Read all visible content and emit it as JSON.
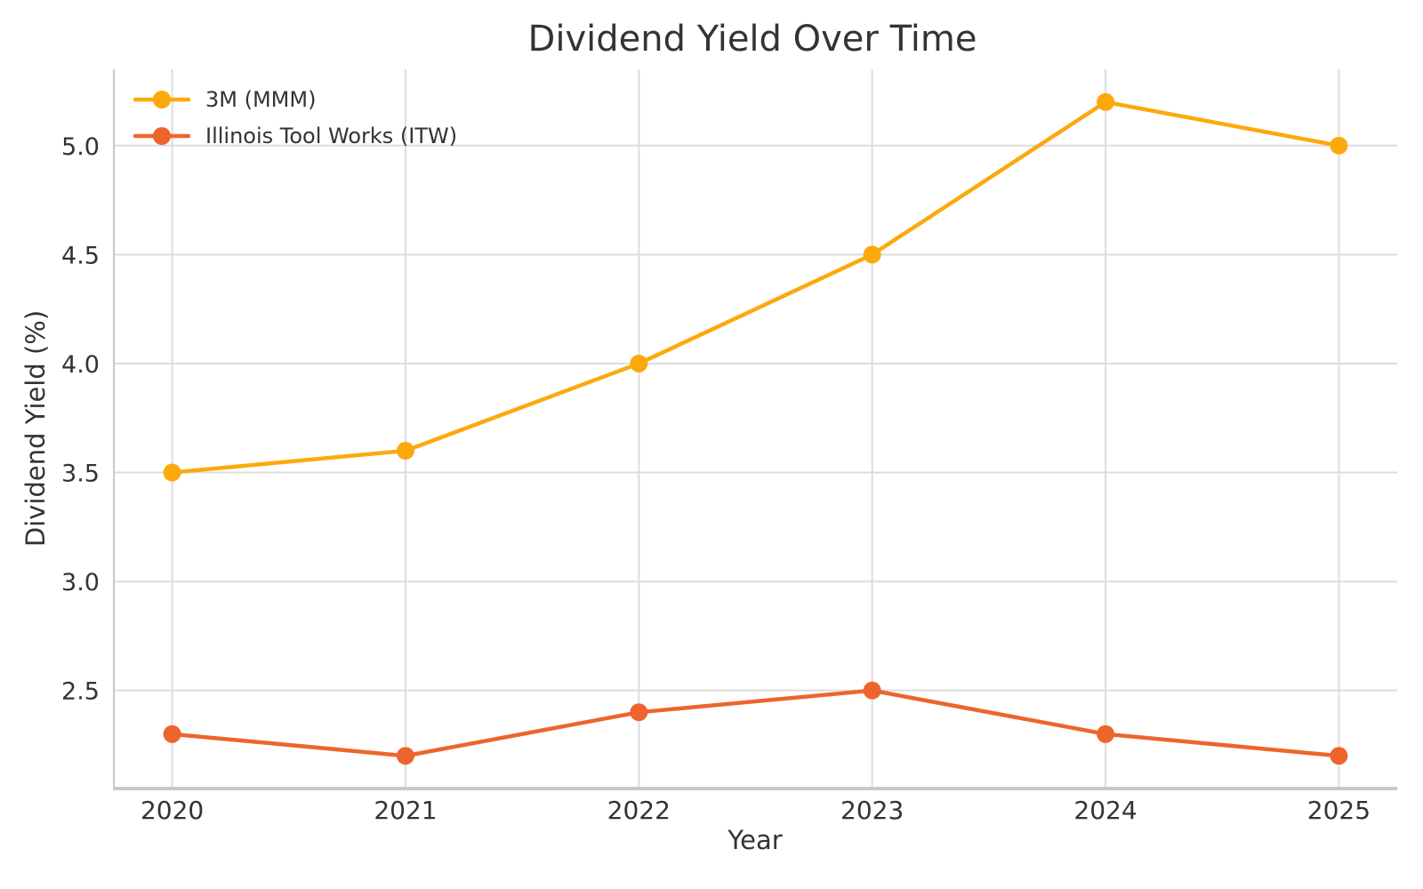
{
  "figure": {
    "background": "#ffffff",
    "text_color": "#333333",
    "grid_color": "#dddddd",
    "spine_color": "#c9c9c9"
  },
  "chart_data": {
    "type": "line",
    "title": "Dividend Yield Over Time",
    "xlabel": "Year",
    "ylabel": "Dividend Yield (%)",
    "x": [
      2020,
      2021,
      2022,
      2023,
      2024,
      2025
    ],
    "xticks": [
      "2020",
      "2021",
      "2022",
      "2023",
      "2024",
      "2025"
    ],
    "yticks": [
      "2.5",
      "3.0",
      "3.5",
      "4.0",
      "4.5",
      "5.0"
    ],
    "ytick_values": [
      2.5,
      3.0,
      3.5,
      4.0,
      4.5,
      5.0
    ],
    "xlim": [
      2019.75,
      2025.25
    ],
    "ylim": [
      2.05,
      5.35
    ],
    "grid": true,
    "legend_position": "upper-left",
    "series": [
      {
        "name": "3M (MMM)",
        "color": "#FCA90E",
        "values": [
          3.5,
          3.6,
          4.0,
          4.5,
          5.2,
          5.0
        ]
      },
      {
        "name": "Illinois Tool Works (ITW)",
        "color": "#ED652C",
        "values": [
          2.3,
          2.2,
          2.4,
          2.5,
          2.3,
          2.2
        ]
      }
    ]
  }
}
